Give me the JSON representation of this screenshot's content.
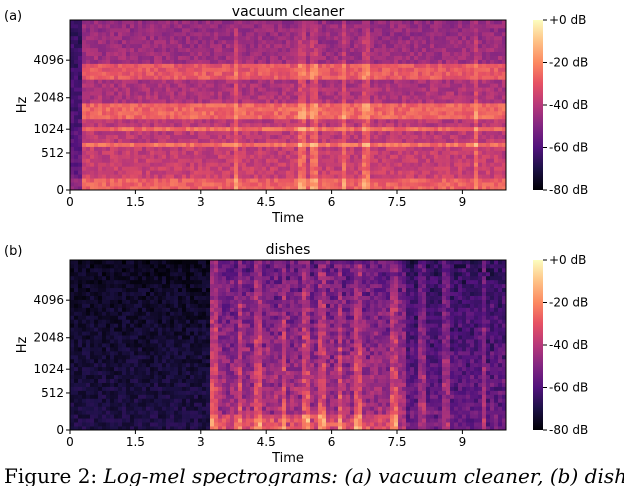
{
  "chart_data": [
    {
      "type": "heatmap",
      "panel_label": "(a)",
      "title": "vacuum cleaner",
      "xlabel": "Time",
      "ylabel": "Hz",
      "x_ticks": [
        "0",
        "1.5",
        "3",
        "4.5",
        "6",
        "7.5",
        "9"
      ],
      "x_tick_values": [
        0,
        1.5,
        3,
        4.5,
        6,
        7.5,
        9
      ],
      "xlim": [
        0,
        10
      ],
      "y_ticks": [
        "0",
        "512",
        "1024",
        "2048",
        "4096"
      ],
      "y_tick_values": [
        0,
        512,
        1024,
        2048,
        4096
      ],
      "yscale": "mel",
      "colorbar": {
        "ticks": [
          "+0 dB",
          "-20 dB",
          "-40 dB",
          "-60 dB",
          "-80 dB"
        ],
        "tick_values": [
          0,
          -20,
          -40,
          -60,
          -80
        ],
        "range": [
          -80,
          0
        ],
        "colormap": "magma"
      },
      "harmonic_bands_hz": [
        350,
        700,
        1050,
        1400,
        1700,
        3200,
        3600
      ],
      "transients_s": [
        3.8,
        5.3,
        5.6,
        6.3,
        6.8,
        9.3
      ],
      "background_db": -35
    },
    {
      "type": "heatmap",
      "panel_label": "(b)",
      "title": "dishes",
      "xlabel": "Time",
      "ylabel": "Hz",
      "x_ticks": [
        "0",
        "1.5",
        "3",
        "4.5",
        "6",
        "7.5",
        "9"
      ],
      "x_tick_values": [
        0,
        1.5,
        3,
        4.5,
        6,
        7.5,
        9
      ],
      "xlim": [
        0,
        10
      ],
      "y_ticks": [
        "0",
        "512",
        "1024",
        "2048",
        "4096"
      ],
      "y_tick_values": [
        0,
        512,
        1024,
        2048,
        4096
      ],
      "yscale": "mel",
      "colorbar": {
        "ticks": [
          "+0 dB",
          "-20 dB",
          "-40 dB",
          "-60 dB",
          "-80 dB"
        ],
        "tick_values": [
          0,
          -20,
          -40,
          -60,
          -80
        ],
        "range": [
          -80,
          0
        ],
        "colormap": "magma"
      },
      "active_region_s": [
        3.2,
        7.5
      ],
      "transients_s": [
        3.3,
        3.9,
        4.3,
        4.9,
        5.4,
        5.8,
        6.2,
        6.6,
        7.4,
        7.6,
        8.1,
        8.6,
        9.5
      ],
      "background_db": -70
    }
  ],
  "caption": {
    "prefix": "Figure 2: ",
    "rest": "Log-mel spectrograms: (a) vacuum cleaner, (b) dishes."
  }
}
